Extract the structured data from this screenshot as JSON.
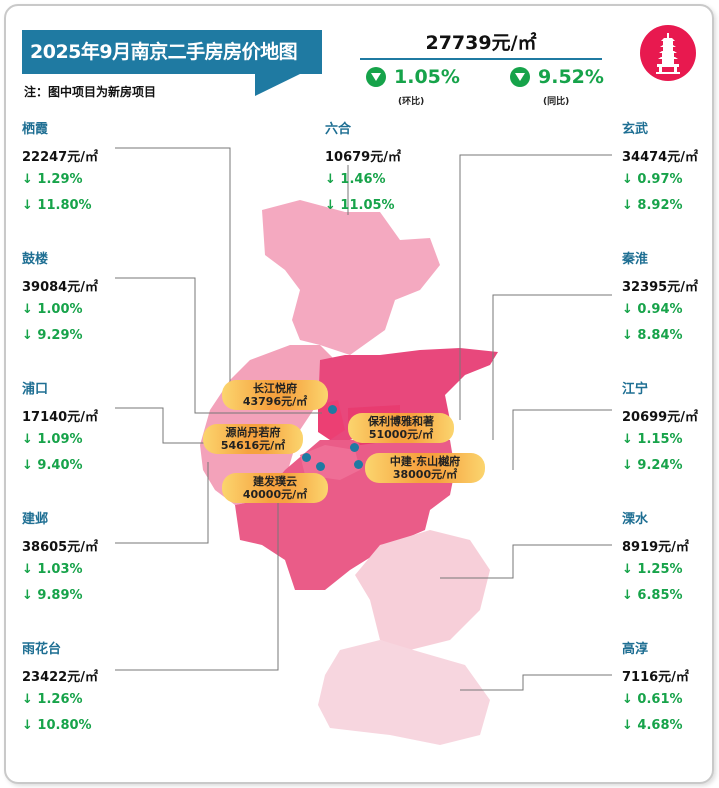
{
  "header": {
    "title": "2025年9月南京二手房房价地图",
    "note": "注：图中项目为新房项目",
    "avg_price": "27739元/㎡",
    "mom": {
      "value": "1.05%",
      "label": "(环比)",
      "direction": "down"
    },
    "yoy": {
      "value": "9.52%",
      "label": "(同比)",
      "direction": "down"
    },
    "logo_icon": "pagoda-icon"
  },
  "colors": {
    "title_bg": "#1f7aa2",
    "down": "#16a34a",
    "district_name": "#1f6f93",
    "logo": "#e8194f"
  },
  "districts": [
    {
      "name": "栖霞",
      "price": "22247元/㎡",
      "mom": "↓ 1.29%",
      "yoy": "↓ 11.80%"
    },
    {
      "name": "鼓楼",
      "price": "39084元/㎡",
      "mom": "↓ 1.00%",
      "yoy": "↓ 9.29%"
    },
    {
      "name": "浦口",
      "price": "17140元/㎡",
      "mom": "↓ 1.09%",
      "yoy": "↓ 9.40%"
    },
    {
      "name": "建邺",
      "price": "38605元/㎡",
      "mom": "↓ 1.03%",
      "yoy": "↓ 9.89%"
    },
    {
      "name": "雨花台",
      "price": "23422元/㎡",
      "mom": "↓ 1.26%",
      "yoy": "↓ 10.80%"
    },
    {
      "name": "六合",
      "price": "10679元/㎡",
      "mom": "↓ 1.46%",
      "yoy": "↓ 11.05%"
    },
    {
      "name": "玄武",
      "price": "34474元/㎡",
      "mom": "↓ 0.97%",
      "yoy": "↓ 8.92%"
    },
    {
      "name": "秦淮",
      "price": "32395元/㎡",
      "mom": "↓ 0.94%",
      "yoy": "↓ 8.84%"
    },
    {
      "name": "江宁",
      "price": "20699元/㎡",
      "mom": "↓ 1.15%",
      "yoy": "↓ 9.24%"
    },
    {
      "name": "溧水",
      "price": "8919元/㎡",
      "mom": "↓ 1.25%",
      "yoy": "↓ 6.85%"
    },
    {
      "name": "高淳",
      "price": "7116元/㎡",
      "mom": "↓ 0.61%",
      "yoy": "↓ 4.68%"
    }
  ],
  "projects": [
    {
      "name": "长江悦府",
      "price": "43796元/㎡"
    },
    {
      "name": "源尚丹若府",
      "price": "54616元/㎡"
    },
    {
      "name": "保利博雅和著",
      "price": "51000元/㎡"
    },
    {
      "name": "中建·东山樾府",
      "price": "38000元/㎡"
    },
    {
      "name": "建发璞云",
      "price": "40000元/㎡"
    }
  ]
}
